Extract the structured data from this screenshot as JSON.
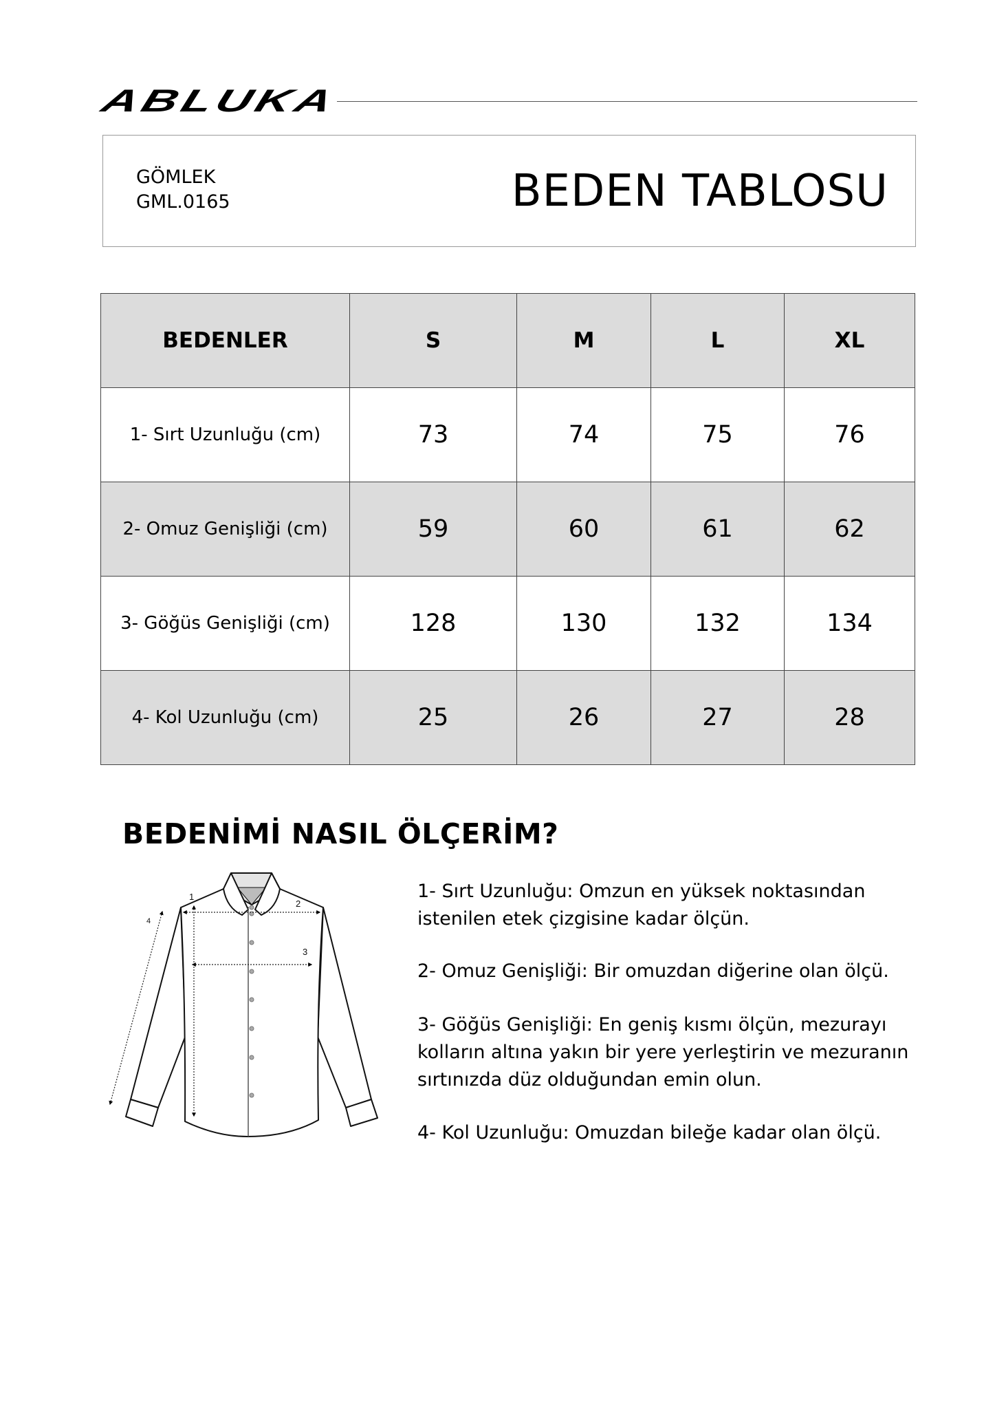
{
  "brand": {
    "logo_text": "ABLUKA"
  },
  "header": {
    "category": "GÖMLEK",
    "product_code": "GML.0165",
    "title": "BEDEN TABLOSU"
  },
  "size_table": {
    "headers": [
      "BEDENLER",
      "S",
      "M",
      "L",
      "XL"
    ],
    "rows": [
      {
        "label": "1- Sırt Uzunluğu (cm)",
        "values": [
          "73",
          "74",
          "75",
          "76"
        ]
      },
      {
        "label": "2- Omuz Genişliği (cm)",
        "values": [
          "59",
          "60",
          "61",
          "62"
        ]
      },
      {
        "label": "3- Göğüs Genişliği (cm)",
        "values": [
          "128",
          "130",
          "132",
          "134"
        ]
      },
      {
        "label": "4- Kol Uzunluğu (cm)",
        "values": [
          "25",
          "26",
          "27",
          "28"
        ]
      }
    ],
    "colors": {
      "header_bg": "#dcdcdc",
      "alt_row_bg": "#dcdcdc",
      "border": "#444444"
    }
  },
  "guide": {
    "heading": "BEDENİMİ NASIL ÖLÇERİM?",
    "diagram_labels": [
      "1",
      "2",
      "3",
      "4"
    ],
    "instructions": [
      [
        "1- Sırt Uzunluğu: Omzun en yüksek noktasından",
        "istenilen etek çizgisine kadar ölçün."
      ],
      [
        "2- Omuz Genişliği: Bir omuzdan diğerine olan ölçü."
      ],
      [
        "3- Göğüs Genişliği: En geniş kısmı ölçün, mezurayı",
        "kolların altına yakın bir yere yerleştirin ve mezuranın",
        "sırtınızda düz olduğundan emin olun."
      ],
      [
        "4- Kol Uzunluğu: Omuzdan bileğe kadar olan ölçü."
      ]
    ]
  }
}
